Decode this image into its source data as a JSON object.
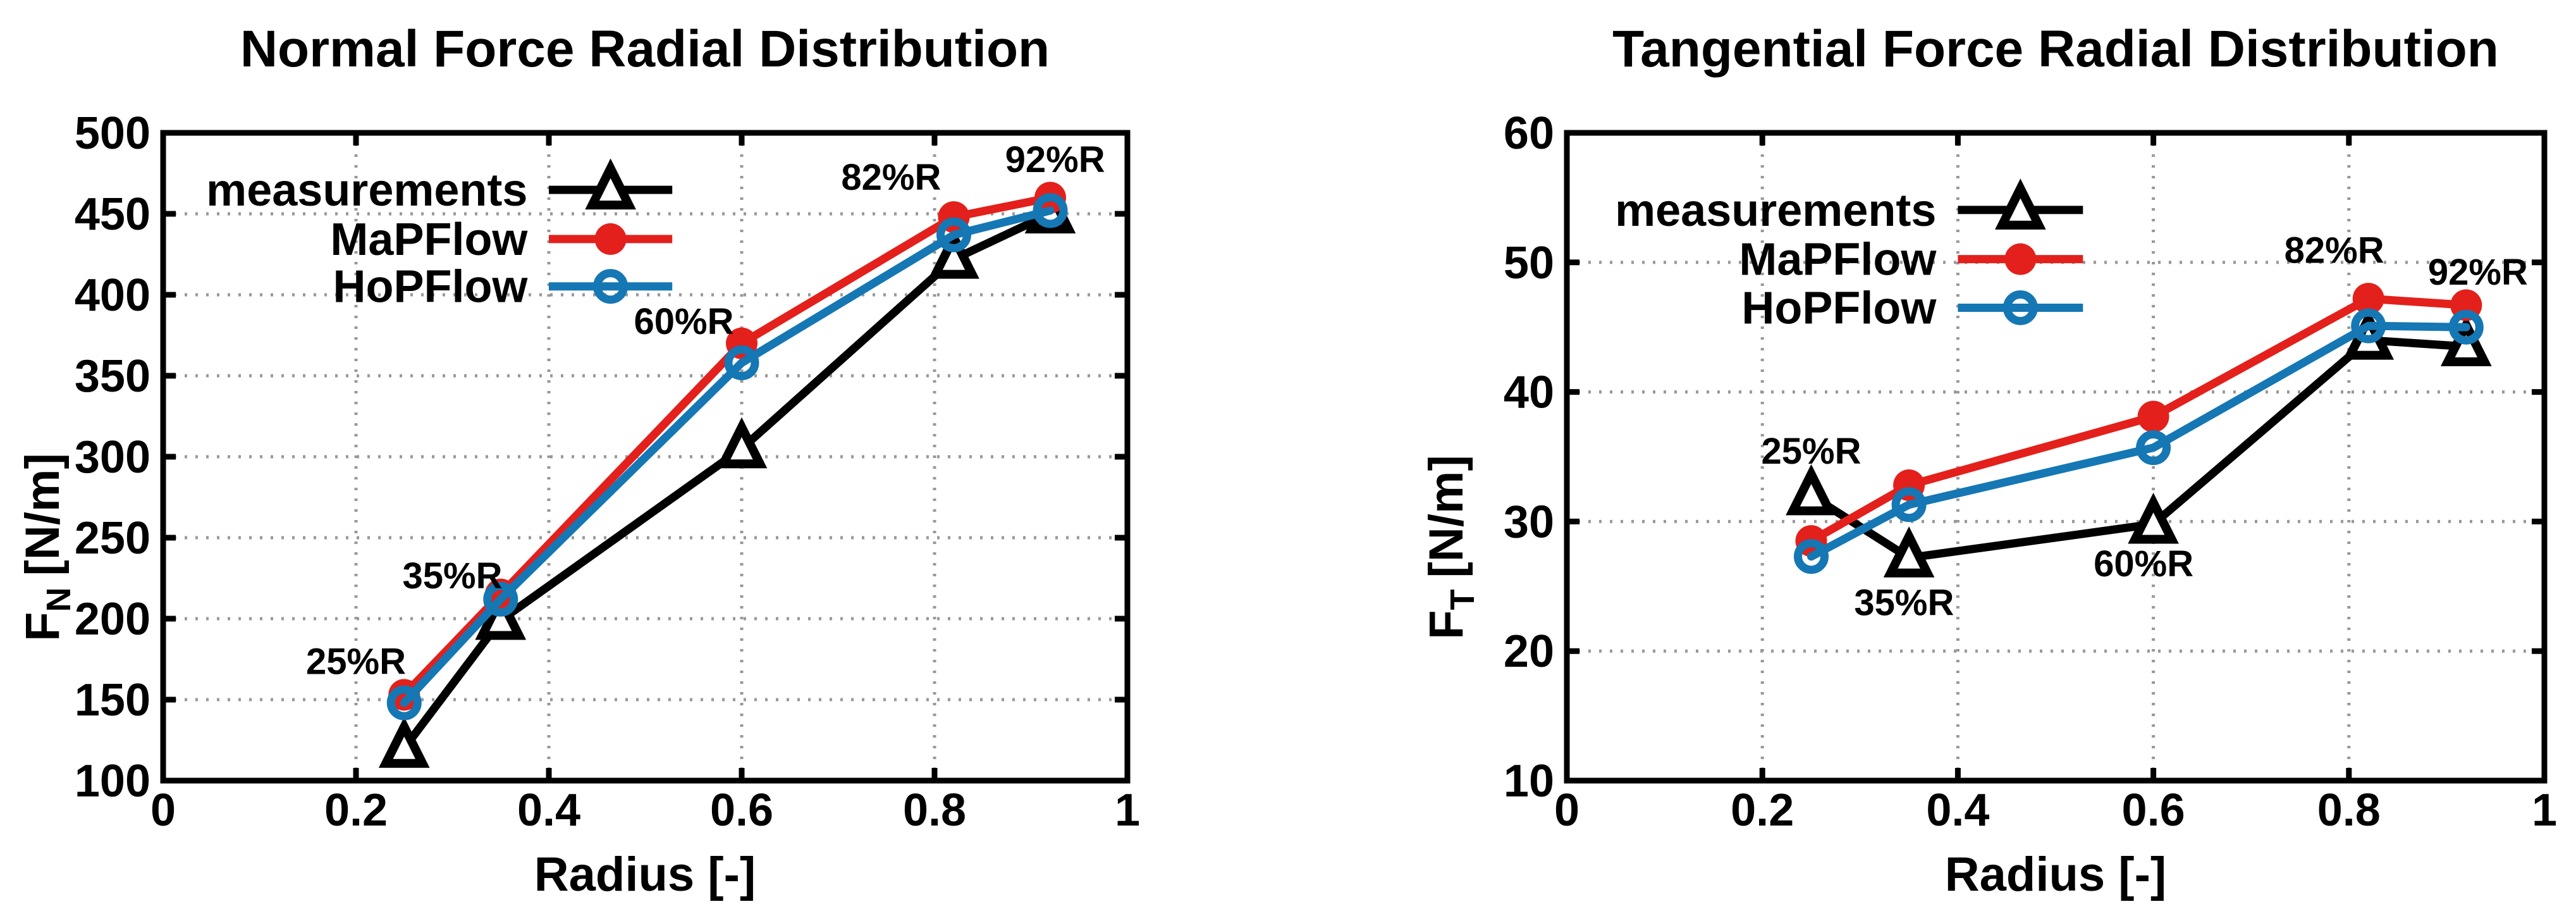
{
  "figure": {
    "background": "#ffffff"
  },
  "colors": {
    "measurements": "#000000",
    "mapflow": "#e3201b",
    "hopflow": "#1577b4",
    "grid": "#999999",
    "frame": "#000000"
  },
  "legend": {
    "items": [
      "measurements",
      "MaPFlow",
      "HoPFlow"
    ]
  },
  "chart_data": [
    {
      "type": "line",
      "title": "Normal Force Radial Distribution",
      "xlabel": "Radius [-]",
      "ylabel": "F_N [N/m]",
      "ylabel_parts": {
        "base": "F",
        "sub": "N",
        "unit": "[N/m]"
      },
      "xlim": [
        0,
        1
      ],
      "ylim": [
        100,
        500
      ],
      "xticks": [
        0,
        0.2,
        0.4,
        0.6,
        0.8,
        1
      ],
      "xtick_labels": [
        "0",
        "0.2",
        "0.4",
        "0.6",
        "0.8",
        "1"
      ],
      "yticks": [
        100,
        150,
        200,
        250,
        300,
        350,
        400,
        450,
        500
      ],
      "ytick_labels": [
        "100",
        "150",
        "200",
        "250",
        "300",
        "350",
        "400",
        "450",
        "500"
      ],
      "grid": true,
      "legend_rows": [
        0.088,
        0.164,
        0.237
      ],
      "x": [
        0.25,
        0.35,
        0.6,
        0.82,
        0.92
      ],
      "series": [
        {
          "name": "measurements",
          "marker": "triangle-open",
          "color_key": "measurements",
          "values": [
            120,
            199,
            305,
            422,
            450
          ]
        },
        {
          "name": "MaPFlow",
          "marker": "circle-filled",
          "color_key": "mapflow",
          "values": [
            153,
            215,
            370,
            448,
            460
          ]
        },
        {
          "name": "HoPFlow",
          "marker": "circle-open",
          "color_key": "hopflow",
          "values": [
            148,
            212,
            358,
            437,
            452
          ]
        }
      ],
      "annotations": [
        {
          "text": "25%R",
          "x": 0.2,
          "y": 174
        },
        {
          "text": "35%R",
          "x": 0.3,
          "y": 227
        },
        {
          "text": "60%R",
          "x": 0.54,
          "y": 384
        },
        {
          "text": "82%R",
          "x": 0.755,
          "y": 473
        },
        {
          "text": "92%R",
          "x": 0.925,
          "y": 484
        }
      ]
    },
    {
      "type": "line",
      "title": "Tangential Force Radial Distribution",
      "xlabel": "Radius [-]",
      "ylabel": "F_T [N/m]",
      "ylabel_parts": {
        "base": "F",
        "sub": "T",
        "unit": "[N/m]"
      },
      "xlim": [
        0,
        1
      ],
      "ylim": [
        10,
        60
      ],
      "xticks": [
        0,
        0.2,
        0.4,
        0.6,
        0.8,
        1
      ],
      "xtick_labels": [
        "0",
        "0.2",
        "0.4",
        "0.6",
        "0.8",
        "1"
      ],
      "yticks": [
        10,
        20,
        30,
        40,
        50,
        60
      ],
      "ytick_labels": [
        "10",
        "20",
        "30",
        "40",
        "50",
        "60"
      ],
      "grid": true,
      "legend_rows": [
        0.119,
        0.195,
        0.27
      ],
      "x": [
        0.25,
        0.35,
        0.6,
        0.82,
        0.92
      ],
      "series": [
        {
          "name": "measurements",
          "marker": "triangle-open",
          "color_key": "measurements",
          "values": [
            32,
            27.2,
            29.8,
            44,
            43.5
          ]
        },
        {
          "name": "MaPFlow",
          "marker": "circle-filled",
          "color_key": "mapflow",
          "values": [
            28.5,
            32.8,
            38.1,
            47.2,
            46.7
          ]
        },
        {
          "name": "HoPFlow",
          "marker": "circle-open",
          "color_key": "hopflow",
          "values": [
            27.3,
            31.3,
            35.7,
            45.1,
            45.0
          ]
        }
      ],
      "annotations": [
        {
          "text": "25%R",
          "x": 0.25,
          "y": 35.5
        },
        {
          "text": "35%R",
          "x": 0.345,
          "y": 23.8
        },
        {
          "text": "60%R",
          "x": 0.59,
          "y": 26.8
        },
        {
          "text": "82%R",
          "x": 0.785,
          "y": 51.0
        },
        {
          "text": "92%R",
          "x": 0.932,
          "y": 49.3
        }
      ]
    }
  ]
}
